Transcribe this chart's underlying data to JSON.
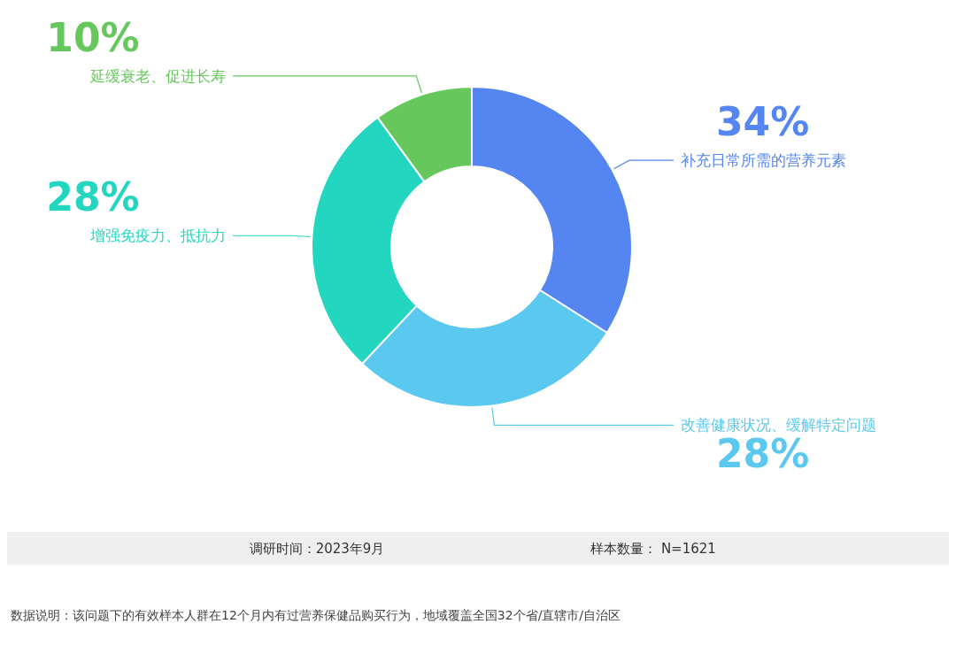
{
  "chart_data": {
    "type": "donut",
    "categories": [
      "补充日常所需的营养元素",
      "改善健康状况、缓解特定问题",
      "增强免疫力、抵抗力",
      "延缓衰老、促进长寿"
    ],
    "values": [
      34,
      28,
      28,
      10
    ],
    "colors": [
      "#5585f0",
      "#5bc8ef",
      "#22d6bf",
      "#66c85c"
    ],
    "value_labels": [
      "34%",
      "28%",
      "28%",
      "10%"
    ],
    "annotations": [
      "调研时间：2023年9月",
      "样本数量： N=1621",
      "数据说明：该问题下的有效样本人群在12个月内有过营养保健品购买行为，地域覆盖全国32个省/直辖市/自治区"
    ]
  }
}
